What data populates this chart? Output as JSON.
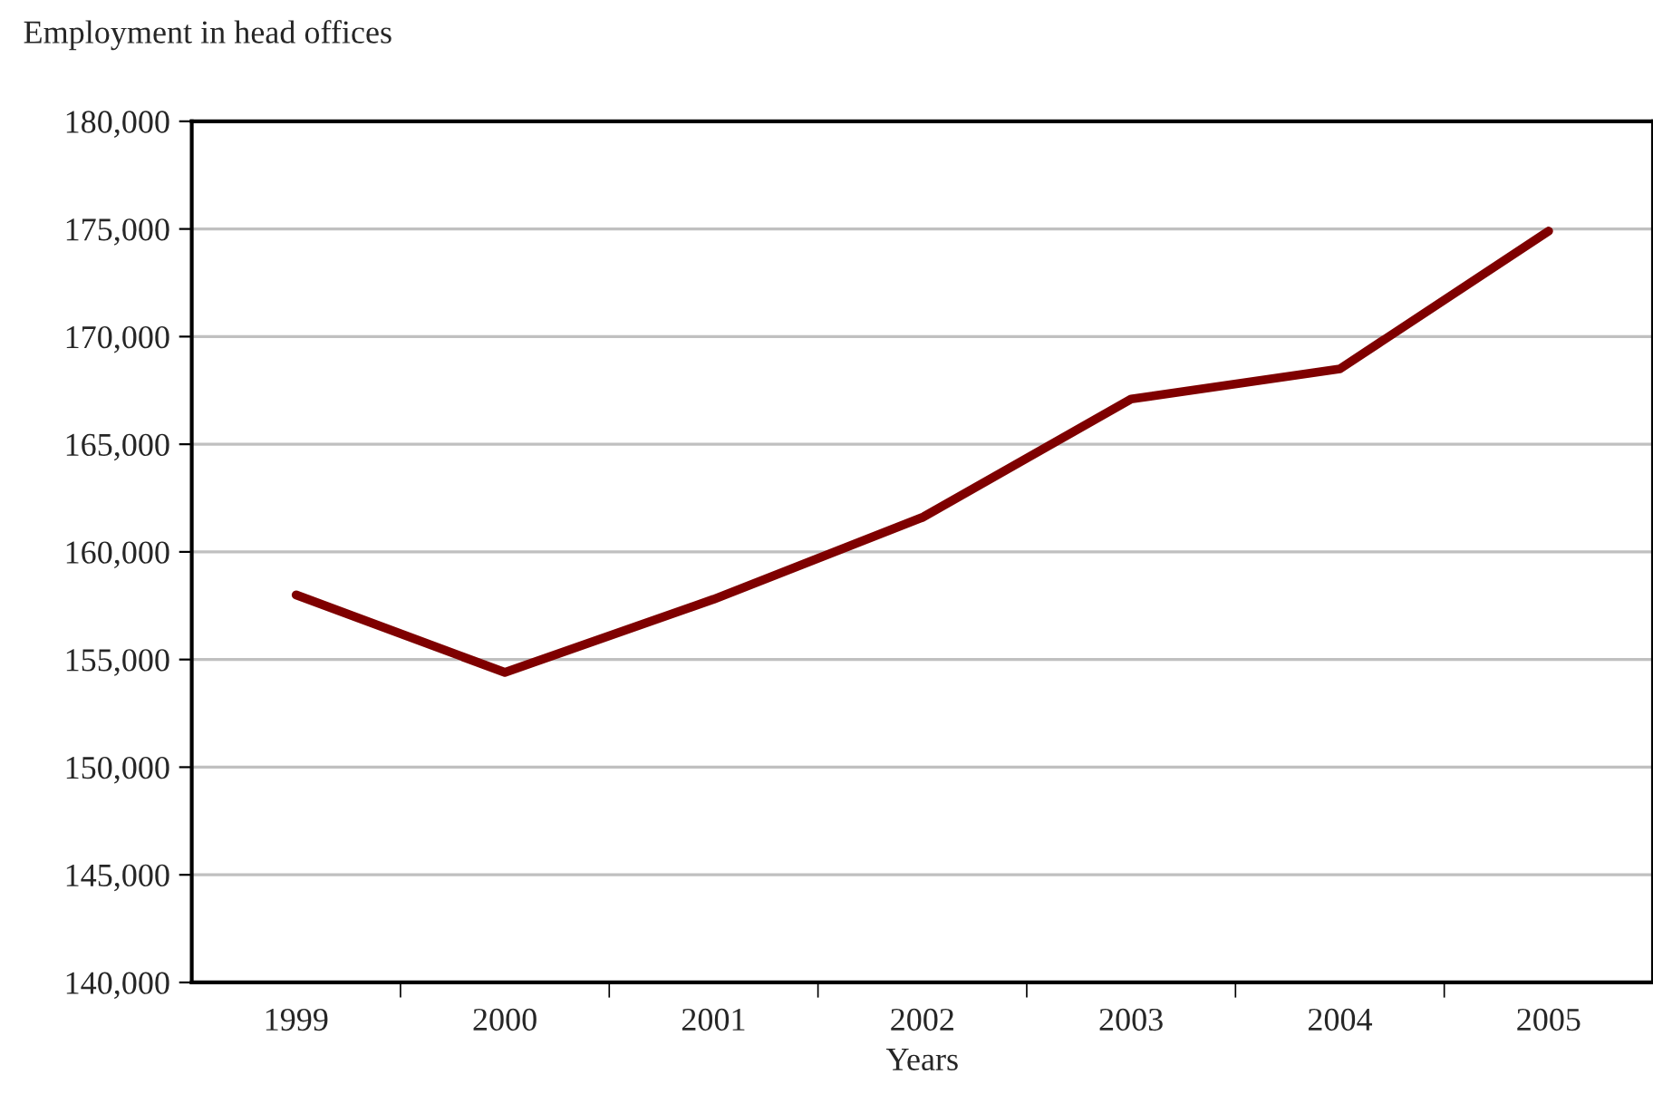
{
  "chart_data": {
    "type": "line",
    "ylabel": "Employment in head offices",
    "xlabel": "Years",
    "categories": [
      "1999",
      "2000",
      "2001",
      "2002",
      "2003",
      "2004",
      "2005"
    ],
    "series": [
      {
        "color": "#7f0000",
        "values": [
          158000,
          154400,
          157800,
          161600,
          167100,
          168500,
          174900
        ]
      }
    ],
    "ylim": [
      140000,
      180000
    ],
    "yticks": [
      {
        "value": 140000,
        "label": "140,000"
      },
      {
        "value": 145000,
        "label": "145,000"
      },
      {
        "value": 150000,
        "label": "150,000"
      },
      {
        "value": 155000,
        "label": "155,000"
      },
      {
        "value": 160000,
        "label": "160,000"
      },
      {
        "value": 165000,
        "label": "165,000"
      },
      {
        "value": 170000,
        "label": "170,000"
      },
      {
        "value": 175000,
        "label": "175,000"
      },
      {
        "value": 180000,
        "label": "180,000"
      }
    ],
    "grid": "y",
    "marker": "none",
    "line_style": "solid"
  }
}
